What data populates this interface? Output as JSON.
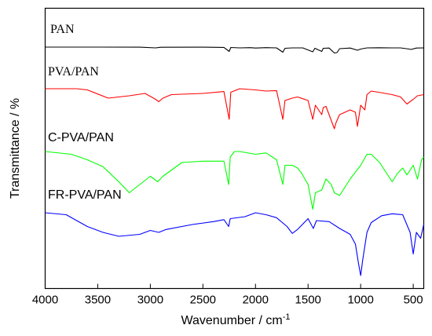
{
  "chart_data": {
    "type": "line",
    "title": "",
    "xlabel": "Wavenumber / cm",
    "xlabel_superscript": "-1",
    "ylabel": "Transmittance / %",
    "xlim": [
      4000,
      400
    ],
    "x_ticks": [
      "4000",
      "3500",
      "3000",
      "2500",
      "2000",
      "1500",
      "1000",
      "500"
    ],
    "x_tick_values": [
      4000,
      3500,
      3000,
      2500,
      2000,
      1500,
      1000,
      500
    ],
    "y_ticks_labeled": false,
    "grid": false,
    "legend": "none (series named by labels above each curve)",
    "series": [
      {
        "name": "PAN",
        "color": "#000000",
        "label_style": "serif",
        "points": [
          [
            4000,
            0.0
          ],
          [
            3500,
            0.0
          ],
          [
            3100,
            0.01
          ],
          [
            2950,
            0.1
          ],
          [
            2900,
            0.02
          ],
          [
            2500,
            0.01
          ],
          [
            2300,
            0.04
          ],
          [
            2250,
            0.55
          ],
          [
            2235,
            0.05
          ],
          [
            2150,
            0.1
          ],
          [
            2050,
            0.07
          ],
          [
            2000,
            0.12
          ],
          [
            1900,
            0.07
          ],
          [
            1800,
            0.1
          ],
          [
            1740,
            0.65
          ],
          [
            1720,
            0.15
          ],
          [
            1650,
            0.1
          ],
          [
            1550,
            0.1
          ],
          [
            1455,
            0.6
          ],
          [
            1435,
            0.15
          ],
          [
            1370,
            0.55
          ],
          [
            1355,
            0.15
          ],
          [
            1300,
            0.12
          ],
          [
            1250,
            0.75
          ],
          [
            1225,
            0.7
          ],
          [
            1200,
            0.2
          ],
          [
            1100,
            0.12
          ],
          [
            1030,
            0.4
          ],
          [
            1000,
            0.25
          ],
          [
            940,
            0.1
          ],
          [
            830,
            0.08
          ],
          [
            700,
            0.1
          ],
          [
            620,
            0.1
          ],
          [
            540,
            0.25
          ],
          [
            520,
            0.3
          ],
          [
            470,
            0.12
          ],
          [
            400,
            0.1
          ]
        ]
      },
      {
        "name": "PVA/PAN",
        "color": "#ff0000",
        "label_style": "serif",
        "points": [
          [
            4000,
            0.0
          ],
          [
            3700,
            0.0
          ],
          [
            3600,
            0.05
          ],
          [
            3400,
            0.4
          ],
          [
            3200,
            0.3
          ],
          [
            3050,
            0.2
          ],
          [
            2950,
            0.45
          ],
          [
            2920,
            0.55
          ],
          [
            2880,
            0.4
          ],
          [
            2800,
            0.25
          ],
          [
            2500,
            0.2
          ],
          [
            2300,
            0.12
          ],
          [
            2250,
            1.3
          ],
          [
            2235,
            0.15
          ],
          [
            2150,
            0.0
          ],
          [
            2000,
            0.05
          ],
          [
            1900,
            0.1
          ],
          [
            1800,
            0.08
          ],
          [
            1740,
            1.3
          ],
          [
            1720,
            0.5
          ],
          [
            1650,
            0.4
          ],
          [
            1600,
            0.35
          ],
          [
            1500,
            0.5
          ],
          [
            1455,
            1.3
          ],
          [
            1430,
            0.7
          ],
          [
            1370,
            1.1
          ],
          [
            1355,
            0.8
          ],
          [
            1330,
            0.75
          ],
          [
            1250,
            1.7
          ],
          [
            1235,
            1.45
          ],
          [
            1200,
            1.1
          ],
          [
            1100,
            0.9
          ],
          [
            1050,
            1.0
          ],
          [
            1030,
            1.6
          ],
          [
            1000,
            0.7
          ],
          [
            960,
            0.9
          ],
          [
            940,
            0.25
          ],
          [
            900,
            0.1
          ],
          [
            830,
            0.15
          ],
          [
            700,
            0.25
          ],
          [
            620,
            0.35
          ],
          [
            560,
            0.65
          ],
          [
            500,
            0.45
          ],
          [
            460,
            0.3
          ],
          [
            400,
            0.25
          ]
        ]
      },
      {
        "name": "C-PVA/PAN",
        "color": "#00ff00",
        "label_style": "sans",
        "points": [
          [
            4000,
            0.0
          ],
          [
            3750,
            0.1
          ],
          [
            3600,
            0.3
          ],
          [
            3450,
            0.55
          ],
          [
            3300,
            1.1
          ],
          [
            3200,
            1.5
          ],
          [
            3100,
            1.2
          ],
          [
            3000,
            0.9
          ],
          [
            2930,
            1.1
          ],
          [
            2880,
            0.9
          ],
          [
            2700,
            0.4
          ],
          [
            2500,
            0.35
          ],
          [
            2300,
            0.35
          ],
          [
            2255,
            1.2
          ],
          [
            2240,
            0.2
          ],
          [
            2200,
            0.0
          ],
          [
            2150,
            0.0
          ],
          [
            2000,
            0.1
          ],
          [
            1900,
            0.05
          ],
          [
            1800,
            0.3
          ],
          [
            1740,
            1.2
          ],
          [
            1720,
            0.5
          ],
          [
            1650,
            0.5
          ],
          [
            1600,
            0.6
          ],
          [
            1560,
            0.8
          ],
          [
            1500,
            1.2
          ],
          [
            1455,
            2.1
          ],
          [
            1430,
            1.5
          ],
          [
            1370,
            1.4
          ],
          [
            1330,
            1.0
          ],
          [
            1280,
            1.2
          ],
          [
            1250,
            1.5
          ],
          [
            1200,
            1.6
          ],
          [
            1150,
            1.3
          ],
          [
            1100,
            1.0
          ],
          [
            1050,
            0.75
          ],
          [
            1000,
            0.5
          ],
          [
            940,
            0.1
          ],
          [
            900,
            0.1
          ],
          [
            820,
            0.4
          ],
          [
            700,
            1.1
          ],
          [
            650,
            0.8
          ],
          [
            600,
            0.6
          ],
          [
            560,
            0.85
          ],
          [
            500,
            0.5
          ],
          [
            460,
            1.0
          ],
          [
            420,
            0.3
          ],
          [
            400,
            0.2
          ]
        ]
      },
      {
        "name": "FR-PVA/PAN",
        "color": "#0000ff",
        "label_style": "sans",
        "points": [
          [
            4000,
            0.0
          ],
          [
            3800,
            0.1
          ],
          [
            3700,
            0.4
          ],
          [
            3600,
            0.7
          ],
          [
            3450,
            1.0
          ],
          [
            3300,
            1.2
          ],
          [
            3100,
            1.1
          ],
          [
            3000,
            0.9
          ],
          [
            2920,
            1.0
          ],
          [
            2850,
            0.85
          ],
          [
            2600,
            0.6
          ],
          [
            2400,
            0.45
          ],
          [
            2300,
            0.35
          ],
          [
            2255,
            0.7
          ],
          [
            2240,
            0.3
          ],
          [
            2100,
            0.2
          ],
          [
            2000,
            0.0
          ],
          [
            1900,
            0.1
          ],
          [
            1800,
            0.25
          ],
          [
            1700,
            0.7
          ],
          [
            1650,
            1.05
          ],
          [
            1600,
            0.85
          ],
          [
            1500,
            0.3
          ],
          [
            1450,
            0.8
          ],
          [
            1420,
            0.4
          ],
          [
            1300,
            0.45
          ],
          [
            1200,
            0.8
          ],
          [
            1100,
            1.1
          ],
          [
            1050,
            1.6
          ],
          [
            1020,
            2.6
          ],
          [
            1000,
            3.2
          ],
          [
            980,
            2.4
          ],
          [
            940,
            1.0
          ],
          [
            900,
            0.5
          ],
          [
            800,
            0.15
          ],
          [
            700,
            0.05
          ],
          [
            600,
            0.1
          ],
          [
            530,
            1.0
          ],
          [
            500,
            2.1
          ],
          [
            470,
            1.0
          ],
          [
            430,
            1.3
          ],
          [
            400,
            0.6
          ]
        ]
      }
    ]
  }
}
